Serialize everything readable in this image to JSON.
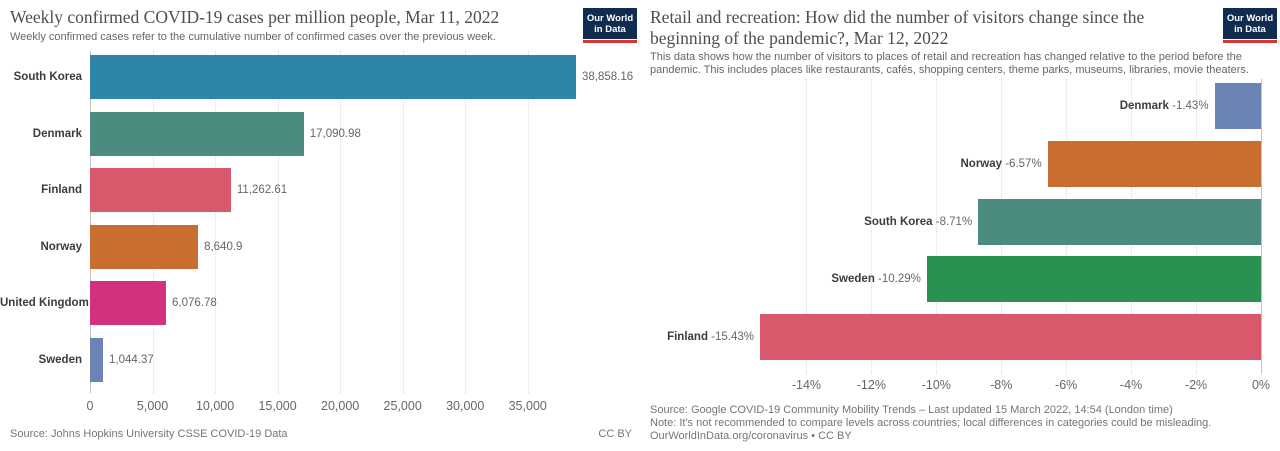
{
  "brand": {
    "line1": "Our World",
    "line2": "in Data",
    "navy": "#102d50",
    "red": "#d8352e"
  },
  "chart_data": [
    {
      "type": "bar",
      "orientation": "horizontal",
      "title": "Weekly confirmed COVID-19 cases per million people, Mar 11, 2022",
      "subtitle": "Weekly confirmed cases refer to the cumulative number of confirmed cases over the previous week.",
      "categories": [
        "South Korea",
        "Denmark",
        "Finland",
        "Norway",
        "United Kingdom",
        "Sweden"
      ],
      "values": [
        38858.16,
        17090.98,
        11262.61,
        8640.9,
        6076.78,
        1044.37
      ],
      "value_labels": [
        "38,858.16",
        "17,090.98",
        "11,262.61",
        "8,640.9",
        "6,076.78",
        "1,044.37"
      ],
      "colors": [
        "#2f85a8",
        "#4c8b80",
        "#d8596b",
        "#c96e31",
        "#d3307e",
        "#6b84b4"
      ],
      "xlim": [
        0,
        38858.16
      ],
      "grid": true,
      "legend": false,
      "ticks": [
        {
          "value": 0,
          "label": "0"
        },
        {
          "value": 5000,
          "label": "5,000"
        },
        {
          "value": 10000,
          "label": "10,000"
        },
        {
          "value": 15000,
          "label": "15,000"
        },
        {
          "value": 20000,
          "label": "20,000"
        },
        {
          "value": 25000,
          "label": "25,000"
        },
        {
          "value": 30000,
          "label": "30,000"
        },
        {
          "value": 35000,
          "label": "35,000"
        }
      ],
      "source": "Source: Johns Hopkins University CSSE COVID-19 Data",
      "license": "CC BY"
    },
    {
      "type": "bar",
      "orientation": "horizontal",
      "title": "Retail and recreation: How did the number of visitors change since the beginning of the pandemic?, Mar 12, 2022",
      "subtitle": "This data shows how the number of visitors to places of retail and recreation has changed relative to the period before the pandemic. This includes places like restaurants, cafés, shopping centers, theme parks, museums, libraries, movie theaters.",
      "categories": [
        "Denmark",
        "Norway",
        "South Korea",
        "Sweden",
        "Finland"
      ],
      "values": [
        -1.43,
        -6.57,
        -8.71,
        -10.29,
        -15.43
      ],
      "value_labels": [
        "-1.43%",
        "-6.57%",
        "-8.71%",
        "-10.29%",
        "-15.43%"
      ],
      "colors": [
        "#6b84b4",
        "#c96e31",
        "#4c8b80",
        "#2a9150",
        "#d8596b"
      ],
      "xlim": [
        -15.43,
        0
      ],
      "grid": true,
      "legend": false,
      "ticks": [
        {
          "value": -14,
          "label": "-14%"
        },
        {
          "value": -12,
          "label": "-12%"
        },
        {
          "value": -10,
          "label": "-10%"
        },
        {
          "value": -8,
          "label": "-8%"
        },
        {
          "value": -6,
          "label": "-6%"
        },
        {
          "value": -4,
          "label": "-4%"
        },
        {
          "value": -2,
          "label": "-2%"
        },
        {
          "value": 0,
          "label": "0%"
        }
      ],
      "source": "Source: Google COVID-19 Community Mobility Trends – Last updated 15 March 2022, 14:54 (London time)",
      "note": "Note: It's not recommended to compare levels across countries; local differences in categories could be misleading.",
      "link": "OurWorldInData.org/coronavirus • CC BY"
    }
  ]
}
